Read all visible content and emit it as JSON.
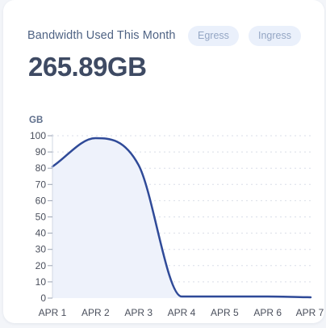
{
  "widget": {
    "title": "Bandwidth Used This Month",
    "total": "265.89GB",
    "tabs": [
      {
        "label": "Egress"
      },
      {
        "label": "Ingress"
      }
    ]
  },
  "colors": {
    "line": "#2f4a98",
    "area": "#eef2fb",
    "grid": "#d9dee8",
    "pill_bg": "#eaf0fb",
    "pill_text": "#94a6c4"
  },
  "chart_data": {
    "type": "area",
    "ylabel": "GB",
    "xlabel": "",
    "x": [
      "APR 1",
      "APR 2",
      "APR 3",
      "APR 4",
      "APR 5",
      "APR 6",
      "APR 7"
    ],
    "series": [
      {
        "values": [
          81,
          98.5,
          82,
          1,
          1,
          1,
          0.5
        ]
      }
    ],
    "ylim": [
      0,
      100
    ],
    "yticks": [
      0,
      10,
      20,
      30,
      40,
      50,
      60,
      70,
      80,
      90,
      100
    ],
    "grid": true,
    "legend": "none"
  }
}
